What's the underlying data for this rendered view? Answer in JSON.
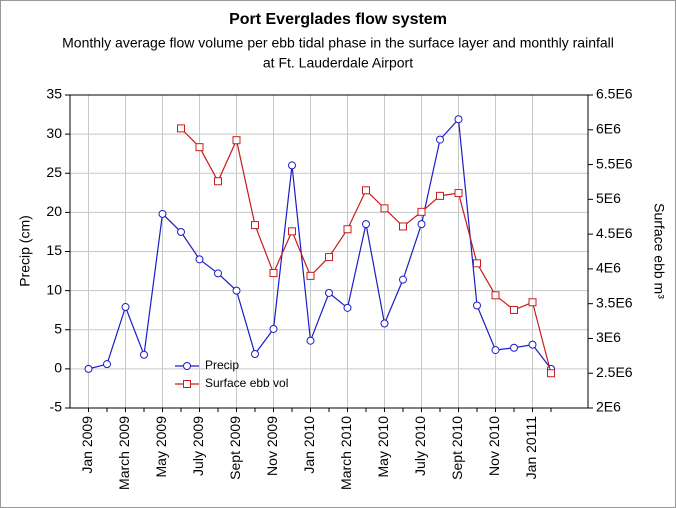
{
  "chart_data": {
    "type": "line",
    "title": "Port Everglades flow system",
    "subtitle": [
      "Monthly average flow volume per ebb tidal phase in the surface layer and monthly rainfall",
      "at Ft. Lauderdale Airport"
    ],
    "ylabel": "Precip (cm)",
    "y2label": "Surface ebb m³",
    "categories": [
      "Jan 2009",
      null,
      "March 2009",
      null,
      "May 2009",
      null,
      "July 2009",
      null,
      "Sept 2009",
      null,
      "Nov 2009",
      null,
      "Jan 2010",
      null,
      "March 2010",
      null,
      "May 2010",
      null,
      "July 2010",
      null,
      "Sept 2010",
      null,
      "Nov 2010",
      null,
      "Jan 20111",
      null
    ],
    "series": [
      {
        "name": "Precip",
        "color": "#1c1cc8",
        "marker": "circle",
        "values": [
          0,
          0.6,
          7.9,
          1.8,
          19.8,
          17.5,
          14,
          12.2,
          10,
          1.9,
          5.1,
          26,
          3.6,
          9.7,
          7.8,
          18.5,
          5.8,
          11.4,
          18.5,
          29.3,
          31.9,
          8.1,
          2.4,
          2.7,
          3.1,
          0
        ]
      },
      {
        "name": "Surface ebb vol",
        "color": "#c81c1c",
        "marker": "square",
        "axis": "y2",
        "values": [
          null,
          null,
          null,
          null,
          null,
          6020000,
          5750000,
          5260000,
          5850000,
          4630000,
          3940000,
          4540000,
          3900000,
          4170000,
          4570000,
          5130000,
          4870000,
          4610000,
          4820000,
          5050000,
          5090000,
          4080000,
          3620000,
          3410000,
          3520000,
          2500000
        ]
      }
    ],
    "ylim": [
      -5,
      35
    ],
    "yticks": [
      -5,
      0,
      5,
      10,
      15,
      20,
      25,
      30,
      35
    ],
    "y2lim": [
      2000000,
      6500000
    ],
    "y2ticks": [
      {
        "value": 2000000,
        "label": "2E6"
      },
      {
        "value": 2500000,
        "label": "2.5E6"
      },
      {
        "value": 3000000,
        "label": "3E6"
      },
      {
        "value": 3500000,
        "label": "3.5E6"
      },
      {
        "value": 4000000,
        "label": "4E6"
      },
      {
        "value": 4500000,
        "label": "4.5E6"
      },
      {
        "value": 5000000,
        "label": "5E6"
      },
      {
        "value": 5500000,
        "label": "5.5E6"
      },
      {
        "value": 6000000,
        "label": "6E6"
      },
      {
        "value": 6500000,
        "label": "6.5E6"
      }
    ],
    "grid": true,
    "legend": "lower left"
  }
}
